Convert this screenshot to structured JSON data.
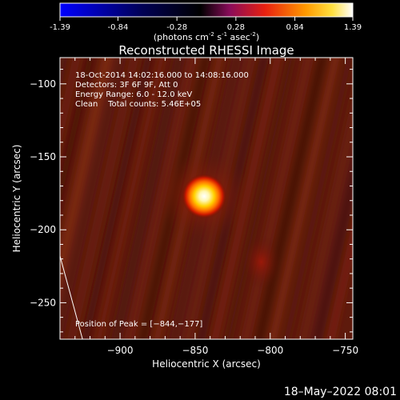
{
  "colorbar": {
    "ticks": [
      "-1.39",
      "-0.84",
      "-0.28",
      "0.28",
      "0.84",
      "1.39"
    ],
    "tick_values": [
      -1.39,
      -0.84,
      -0.28,
      0.28,
      0.84,
      1.39
    ],
    "range": [
      -1.39,
      1.39
    ],
    "unit_base": "(photons cm",
    "unit_exp1": "-2",
    "unit_mid": " s",
    "unit_exp2": "-1",
    "unit_mid2": " asec",
    "unit_exp3": "-2",
    "unit_close": ")",
    "colors": [
      "#0000ff",
      "#000000",
      "#7a0a8a",
      "#ff2a00",
      "#ffe000",
      "#ffffff"
    ]
  },
  "chart_data": {
    "type": "heatmap",
    "title": "Reconstructed RHESSI Image",
    "xlabel": "Heliocentric X (arcsec)",
    "ylabel": "Heliocentric Y (arcsec)",
    "xlim": [
      -940,
      -745
    ],
    "ylim": [
      -275,
      -82
    ],
    "xticks": [
      -900,
      -850,
      -800,
      -750
    ],
    "xtick_labels": [
      "−900",
      "−850",
      "−800",
      "−750"
    ],
    "yticks": [
      -100,
      -150,
      -200,
      -250
    ],
    "ytick_labels": [
      "−100",
      "−150",
      "−200",
      "−250"
    ],
    "peak_position": [
      -844,
      -177
    ],
    "peak_value": 1.39,
    "secondary_source": [
      -806,
      -222
    ],
    "limb_line": [
      [
        -940,
        -218
      ],
      [
        -925,
        -275
      ]
    ],
    "annotations": {
      "time_range": "18-Oct-2014 14:02:16.000 to 14:08:16.000",
      "detectors": "Detectors: 3F 6F 9F, Att 0",
      "energy": "Energy Range: 6.0 - 12.0 keV",
      "method": "Clean    Total counts: 5.46E+05",
      "peak": "Position of Peak = [−844,−177]"
    }
  },
  "footer": {
    "timestamp": "18–May–2022 08:01"
  }
}
